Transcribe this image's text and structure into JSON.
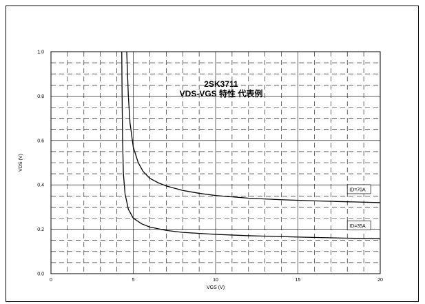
{
  "chart_data": {
    "type": "line",
    "title": "2SK3711",
    "subtitle": "VDS-VGS 特性 代表例",
    "xlabel": "VGS (V)",
    "ylabel": "VDS (V)",
    "xlim": [
      0,
      20
    ],
    "ylim": [
      0,
      1.0
    ],
    "xticks": [
      0,
      5,
      10,
      15,
      20
    ],
    "yticks": [
      0.0,
      0.2,
      0.4,
      0.6,
      0.8,
      1.0
    ],
    "ytick_labels": [
      "0.0",
      "0.2",
      "0.4",
      "0.6",
      "0.8",
      "1.0"
    ],
    "grid": true,
    "series": [
      {
        "name": "ID=70A",
        "x": [
          4.6,
          4.65,
          4.7,
          4.8,
          5.0,
          5.3,
          5.6,
          6.0,
          6.5,
          7.0,
          8.0,
          9.0,
          10.0,
          12.0,
          14.0,
          16.0,
          18.0,
          20.0
        ],
        "y": [
          1.0,
          0.9,
          0.8,
          0.68,
          0.57,
          0.5,
          0.46,
          0.43,
          0.41,
          0.395,
          0.375,
          0.362,
          0.352,
          0.34,
          0.333,
          0.328,
          0.324,
          0.32
        ]
      },
      {
        "name": "ID=35A",
        "x": [
          4.3,
          4.32,
          4.35,
          4.4,
          4.5,
          4.7,
          5.0,
          5.5,
          6.0,
          7.0,
          8.0,
          10.0,
          12.0,
          15.0,
          18.0,
          20.0
        ],
        "y": [
          1.0,
          0.8,
          0.6,
          0.45,
          0.36,
          0.29,
          0.25,
          0.225,
          0.21,
          0.195,
          0.186,
          0.177,
          0.171,
          0.165,
          0.16,
          0.157
        ]
      }
    ]
  }
}
